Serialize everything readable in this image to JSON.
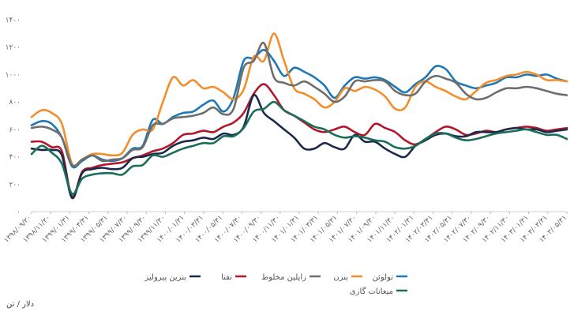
{
  "chart_data": {
    "type": "line",
    "unit_label": "دلار / تن",
    "ylim": [
      0,
      1400
    ],
    "yticks": [
      "۰",
      "۲۰۰",
      "۴۰۰",
      "۶۰۰",
      "۸۰۰",
      "۱۰۰۰",
      "۱۲۰۰",
      "۱۴۰۰"
    ],
    "ytick_values": [
      0,
      200,
      400,
      600,
      800,
      1000,
      1200,
      1400
    ],
    "x_tick_labels": [
      "۱۳۹۸/۰۹/۲۰",
      "۱۳۹۸/۱۱/۲۰",
      "۱۳۹۹/۰۱/۳۱",
      "۱۳۹۹/۰۳/۳۱",
      "۱۳۹۹/۰۵/۳۱",
      "۱۳۹۹/۰۷/۳۰",
      "۱۳۹۹/۰۹/۳۰",
      "۱۳۹۹/۱۱/۳۰",
      "۱۴۰۰/۰۱/۳۱",
      "۱۴۰۰/۰۳/۳۱",
      "۱۴۰۰/۰۵/۳۱",
      "۱۴۰۰/۰۷/۳۰",
      "۱۴۰۰/۰۹/۳۰",
      "۱۴۰۰/۱۱/۳۰",
      "۱۴۰۱/۰۱/۳۱",
      "۱۴۰۱/۰۳/۳۱",
      "۱۴۰۱/۰۵/۳۱",
      "۱۴۰۱/۰۷/۳۰",
      "۱۴۰۱/۰۹/۳۰",
      "۱۴۰۱/۱۱/۳۰",
      "۱۴۰۲/۰۱/۳۱",
      "۱۴۰۲/۰۳/۳۱",
      "۱۴۰۲/۰۵/۳۱",
      "۱۴۰۲/۰۷/۳۰",
      "۱۴۰۲/۰۹/۳۰",
      "۱۴۰۲/۱۱/۳۰",
      "۱۴۰۳/۰۱/۳۱",
      "۱۴۰۳/۰۳/۳۱",
      "۱۴۰۳/۰۵/۳۱"
    ],
    "grid": false,
    "legend_position": "bottom",
    "series": [
      {
        "name": "تولوئن",
        "color": "#1f78b4",
        "values": [
          630,
          660,
          640,
          540,
          330,
          370,
          410,
          380,
          370,
          390,
          460,
          480,
          670,
          640,
          690,
          720,
          730,
          780,
          810,
          730,
          830,
          1100,
          1120,
          1180,
          1100,
          990,
          1050,
          1020,
          980,
          920,
          830,
          920,
          980,
          970,
          980,
          960,
          910,
          870,
          930,
          980,
          1060,
          1040,
          950,
          920,
          900,
          920,
          940,
          980,
          980,
          1000,
          990,
          1000,
          970,
          950
        ]
      },
      {
        "name": "بنزن",
        "color": "#f28e2b",
        "values": [
          690,
          740,
          720,
          640,
          350,
          380,
          420,
          420,
          410,
          430,
          560,
          600,
          600,
          800,
          980,
          920,
          960,
          900,
          910,
          870,
          820,
          890,
          1130,
          1100,
          1300,
          1100,
          900,
          860,
          820,
          760,
          800,
          900,
          880,
          910,
          890,
          840,
          750,
          760,
          910,
          950,
          910,
          880,
          840,
          820,
          880,
          940,
          960,
          990,
          1000,
          1020,
          1000,
          960,
          960,
          950
        ]
      },
      {
        "name": "زایلین مخلوط",
        "color": "#6e6e6e",
        "values": [
          610,
          620,
          600,
          540,
          340,
          380,
          410,
          370,
          380,
          390,
          450,
          470,
          630,
          640,
          680,
          690,
          700,
          720,
          760,
          710,
          750,
          1050,
          1100,
          1230,
          980,
          940,
          920,
          950,
          910,
          860,
          800,
          840,
          950,
          950,
          960,
          950,
          880,
          850,
          860,
          950,
          990,
          970,
          940,
          860,
          820,
          830,
          870,
          900,
          900,
          910,
          900,
          880,
          860,
          850
        ]
      },
      {
        "name": "نفتا",
        "color": "#b2182b",
        "values": [
          510,
          510,
          470,
          440,
          110,
          290,
          320,
          340,
          350,
          360,
          390,
          410,
          440,
          460,
          500,
          560,
          570,
          590,
          580,
          620,
          650,
          720,
          860,
          930,
          850,
          740,
          700,
          650,
          600,
          580,
          600,
          620,
          580,
          560,
          640,
          610,
          580,
          520,
          490,
          530,
          580,
          620,
          600,
          560,
          570,
          590,
          580,
          600,
          610,
          620,
          610,
          590,
          600,
          610
        ]
      },
      {
        "name": "بنزین پیرولیز",
        "color": "#1b2a4a",
        "values": [
          460,
          450,
          450,
          410,
          100,
          280,
          310,
          320,
          310,
          320,
          390,
          400,
          420,
          430,
          480,
          510,
          520,
          540,
          530,
          570,
          560,
          620,
          850,
          720,
          660,
          600,
          540,
          460,
          460,
          500,
          470,
          460,
          560,
          510,
          510,
          460,
          420,
          400,
          480,
          520,
          560,
          570,
          550,
          550,
          580,
          580,
          580,
          600,
          610,
          600,
          600,
          580,
          590,
          600
        ]
      },
      {
        "name": "میعانات گازی",
        "color": "#1b6e5a",
        "values": [
          420,
          480,
          430,
          350,
          130,
          240,
          270,
          280,
          280,
          270,
          330,
          340,
          410,
          400,
          430,
          460,
          480,
          500,
          500,
          550,
          550,
          610,
          730,
          750,
          800,
          740,
          700,
          660,
          620,
          600,
          560,
          540,
          550,
          540,
          520,
          510,
          470,
          460,
          480,
          530,
          570,
          570,
          540,
          520,
          530,
          550,
          570,
          580,
          590,
          600,
          580,
          560,
          560,
          530
        ]
      }
    ]
  }
}
